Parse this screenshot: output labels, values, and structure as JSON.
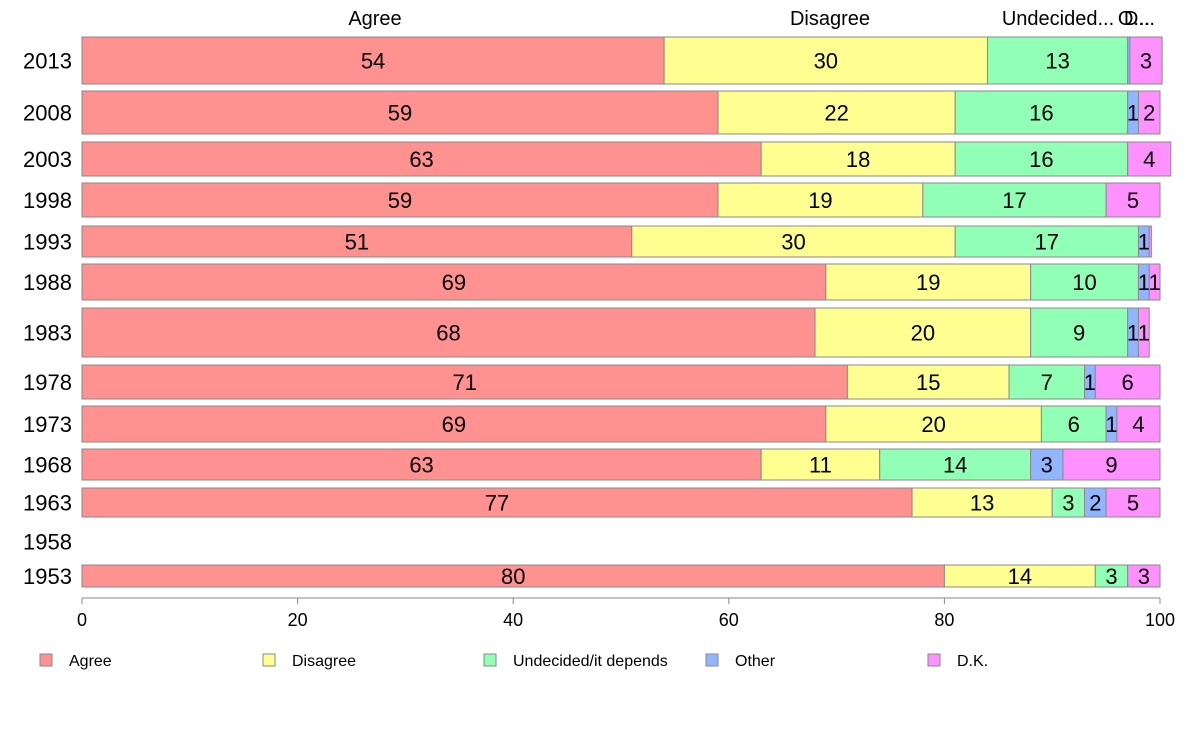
{
  "chart_data": {
    "type": "bar",
    "orientation": "horizontal",
    "stacked": true,
    "title": "",
    "xlabel": "",
    "ylabel": "",
    "xlim": [
      0,
      100
    ],
    "xticks": [
      "0",
      "20",
      "40",
      "60",
      "80",
      "100"
    ],
    "grid": false,
    "legend_position": "bottom",
    "column_headers": [
      "Agree",
      "Disagree",
      "Undecided...",
      "O...",
      "D..."
    ],
    "categories": [
      "2013",
      "2008",
      "2003",
      "1998",
      "1993",
      "1988",
      "1983",
      "1978",
      "1973",
      "1968",
      "1963",
      "1958",
      "1953"
    ],
    "series": [
      {
        "name": "Agree",
        "color": "#ff9191",
        "values": [
          54,
          59,
          63,
          59,
          51,
          69,
          68,
          71,
          69,
          63,
          77,
          null,
          80
        ]
      },
      {
        "name": "Disagree",
        "color": "#ffff91",
        "values": [
          30,
          22,
          18,
          19,
          30,
          19,
          20,
          15,
          20,
          11,
          13,
          null,
          14
        ]
      },
      {
        "name": "Undecided/it depends",
        "color": "#91ffb5",
        "values": [
          13,
          16,
          16,
          17,
          17,
          10,
          9,
          7,
          6,
          14,
          3,
          null,
          3
        ]
      },
      {
        "name": "Other",
        "color": "#91b5ff",
        "values": [
          0.2,
          1,
          0,
          0,
          1,
          1,
          1,
          1,
          1,
          3,
          2,
          null,
          0
        ]
      },
      {
        "name": "D.K.",
        "color": "#ff91ff",
        "values": [
          3,
          2,
          4,
          5,
          0.2,
          1,
          1,
          6,
          4,
          9,
          5,
          null,
          3
        ]
      }
    ]
  }
}
